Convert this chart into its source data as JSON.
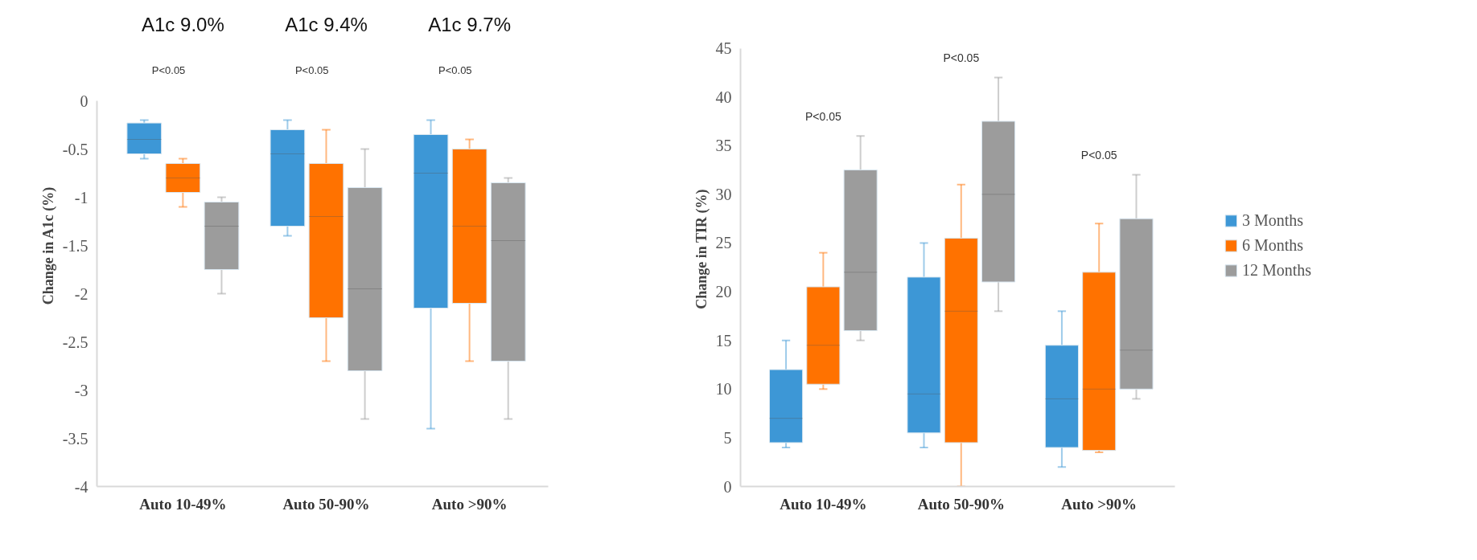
{
  "chart_data": [
    {
      "type": "box",
      "ylabel": "Change in A1c (%)",
      "categories": [
        "Auto 10-49%",
        "Auto 50-90%",
        "Auto >90%"
      ],
      "ylim": [
        -4,
        0
      ],
      "yticks": [
        0,
        -0.5,
        -1,
        -1.5,
        -2,
        -2.5,
        -3,
        -3.5,
        -4
      ],
      "grid": false,
      "legend": false,
      "annotations": [
        "A1c 9.0%",
        "A1c 9.4%",
        "A1c 9.7%",
        "P<0.05",
        "P<0.05",
        "P<0.05"
      ],
      "series": [
        {
          "color": "#3d97d6",
          "boxes": [
            {
              "low": -0.6,
              "q1": -0.55,
              "median": -0.4,
              "q3": -0.23,
              "high": -0.2
            },
            {
              "low": -1.4,
              "q1": -1.3,
              "median": -0.55,
              "q3": -0.3,
              "high": -0.2
            },
            {
              "low": -3.4,
              "q1": -2.15,
              "median": -0.75,
              "q3": -0.35,
              "high": -0.2
            }
          ]
        },
        {
          "color": "#ff7200",
          "boxes": [
            {
              "low": -1.1,
              "q1": -0.95,
              "median": -0.8,
              "q3": -0.65,
              "high": -0.6
            },
            {
              "low": -2.7,
              "q1": -2.25,
              "median": -1.2,
              "q3": -0.65,
              "high": -0.3
            },
            {
              "low": -2.7,
              "q1": -2.1,
              "median": -1.3,
              "q3": -0.5,
              "high": -0.4
            }
          ]
        },
        {
          "color": "#9c9c9c",
          "boxes": [
            {
              "low": -2.0,
              "q1": -1.75,
              "median": -1.3,
              "q3": -1.05,
              "high": -1.0
            },
            {
              "low": -3.3,
              "q1": -2.8,
              "median": -1.95,
              "q3": -0.9,
              "high": -0.5
            },
            {
              "low": -3.3,
              "q1": -2.7,
              "median": -1.45,
              "q3": -0.85,
              "high": -0.8
            }
          ]
        }
      ]
    },
    {
      "type": "box",
      "ylabel": "Change in  TIR  (%)",
      "categories": [
        "Auto 10-49%",
        "Auto 50-90%",
        "Auto >90%"
      ],
      "ylim": [
        0,
        45
      ],
      "yticks": [
        0,
        5,
        10,
        15,
        20,
        25,
        30,
        35,
        40,
        45
      ],
      "grid": false,
      "legend": "right",
      "annotations": [
        "P<0.05",
        "P<0.05",
        "P<0.05"
      ],
      "series": [
        {
          "name": "3 Months",
          "color": "#3d97d6",
          "boxes": [
            {
              "low": 4,
              "q1": 4.5,
              "median": 7,
              "q3": 12,
              "high": 15
            },
            {
              "low": 4,
              "q1": 5.5,
              "median": 9.5,
              "q3": 21.5,
              "high": 25
            },
            {
              "low": 2,
              "q1": 4,
              "median": 9,
              "q3": 14.5,
              "high": 18
            }
          ]
        },
        {
          "name": "6 Months",
          "color": "#ff7200",
          "boxes": [
            {
              "low": 10,
              "q1": 10.5,
              "median": 14.5,
              "q3": 20.5,
              "high": 24
            },
            {
              "low": 0,
              "q1": 4.5,
              "median": 18,
              "q3": 25.5,
              "high": 31
            },
            {
              "low": 3.5,
              "q1": 3.7,
              "median": 10,
              "q3": 22,
              "high": 27
            }
          ]
        },
        {
          "name": "12 Months",
          "color": "#9c9c9c",
          "boxes": [
            {
              "low": 15,
              "q1": 16,
              "median": 22,
              "q3": 32.5,
              "high": 36
            },
            {
              "low": 18,
              "q1": 21,
              "median": 30,
              "q3": 37.5,
              "high": 42
            },
            {
              "low": 9,
              "q1": 10,
              "median": 14,
              "q3": 27.5,
              "high": 32
            }
          ]
        }
      ]
    }
  ]
}
